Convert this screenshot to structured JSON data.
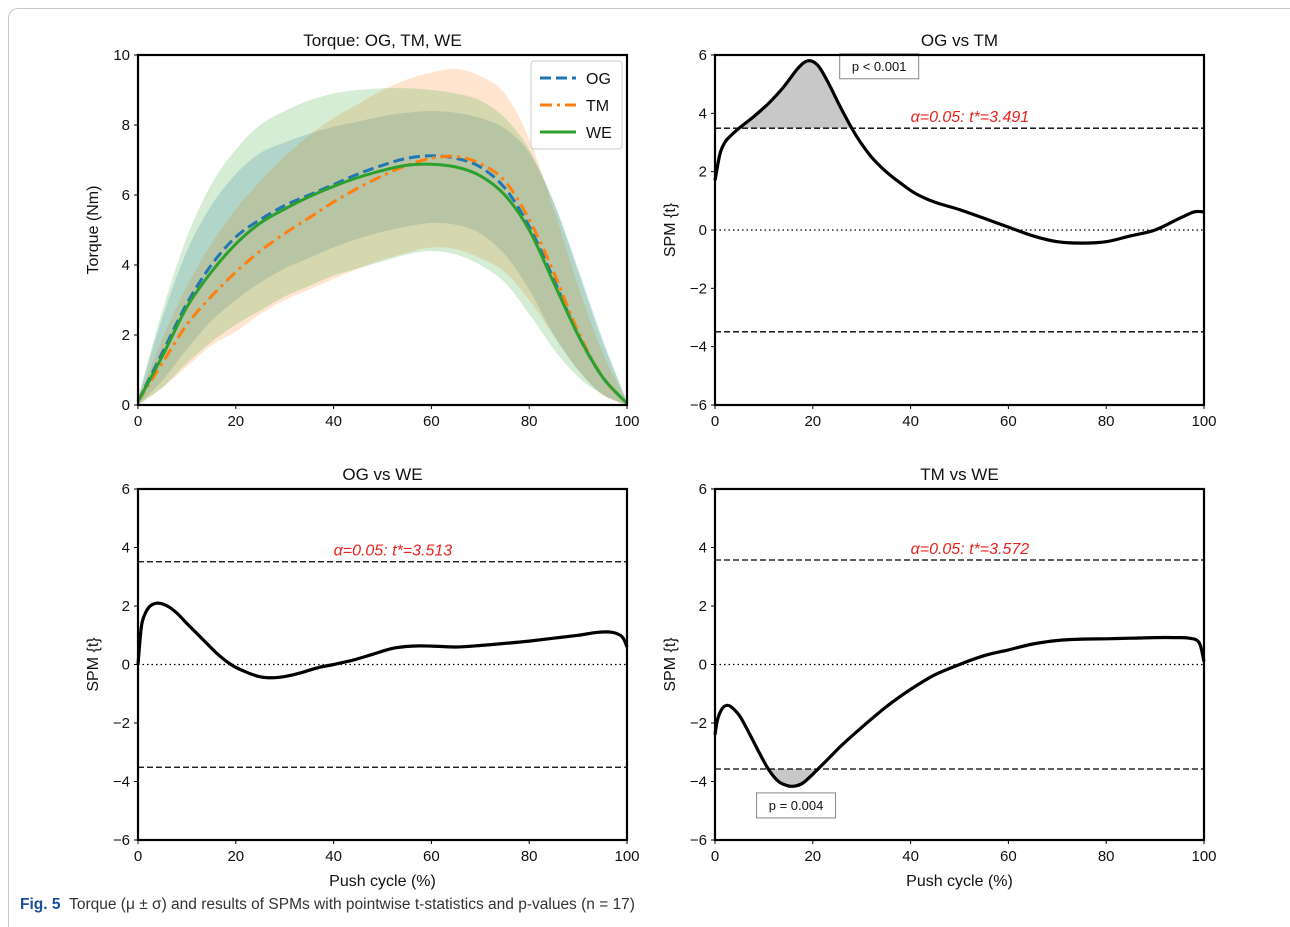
{
  "caption": {
    "label": "Fig. 5",
    "text": "Torque (μ ± σ) and results of SPMs with pointwise t-statistics and p-values (n = 17)"
  },
  "chart_data": [
    {
      "type": "line",
      "title": "Torque: OG, TM, WE",
      "xlabel": "",
      "ylabel": "Torque (Nm)",
      "xlim": [
        0,
        100
      ],
      "ylim": [
        0,
        10
      ],
      "xticks": [
        0,
        20,
        40,
        60,
        80,
        100
      ],
      "yticks": [
        0,
        2,
        4,
        6,
        8,
        10
      ],
      "legend_position": "top-right",
      "series": [
        {
          "name": "OG",
          "color": "#1f77b4",
          "style": "dashed",
          "x": [
            0,
            5,
            10,
            15,
            20,
            25,
            30,
            35,
            40,
            45,
            50,
            55,
            60,
            65,
            70,
            75,
            80,
            85,
            90,
            95,
            100
          ],
          "mean": [
            0.1,
            1.5,
            2.9,
            4.0,
            4.8,
            5.3,
            5.7,
            6.0,
            6.3,
            6.6,
            6.85,
            7.05,
            7.12,
            7.05,
            6.8,
            6.2,
            5.1,
            3.6,
            2.0,
            0.8,
            0.05
          ],
          "upper": [
            0.2,
            2.5,
            4.4,
            5.7,
            6.6,
            7.2,
            7.5,
            7.75,
            7.95,
            8.1,
            8.25,
            8.35,
            8.4,
            8.35,
            8.2,
            7.9,
            7.2,
            5.8,
            3.9,
            1.9,
            0.1
          ],
          "lower": [
            0.0,
            0.7,
            1.6,
            2.4,
            3.0,
            3.5,
            3.9,
            4.2,
            4.5,
            4.75,
            4.95,
            5.1,
            5.2,
            5.15,
            4.9,
            4.3,
            3.3,
            2.0,
            1.0,
            0.3,
            0.0
          ]
        },
        {
          "name": "TM",
          "color": "#ff7f0e",
          "style": "dashdot",
          "x": [
            0,
            5,
            10,
            15,
            20,
            25,
            30,
            35,
            40,
            45,
            50,
            55,
            60,
            65,
            70,
            75,
            80,
            85,
            90,
            95,
            100
          ],
          "mean": [
            0.1,
            1.2,
            2.3,
            3.1,
            3.8,
            4.4,
            4.9,
            5.35,
            5.8,
            6.2,
            6.55,
            6.85,
            7.05,
            7.1,
            6.9,
            6.4,
            5.3,
            3.8,
            2.1,
            0.8,
            0.05
          ],
          "upper": [
            0.2,
            1.9,
            3.4,
            4.6,
            5.6,
            6.4,
            7.1,
            7.7,
            8.2,
            8.6,
            9.0,
            9.3,
            9.5,
            9.6,
            9.4,
            8.9,
            7.6,
            5.6,
            3.4,
            1.5,
            0.1
          ],
          "lower": [
            0.0,
            0.5,
            1.1,
            1.7,
            2.1,
            2.6,
            3.0,
            3.3,
            3.6,
            3.9,
            4.15,
            4.35,
            4.5,
            4.45,
            4.2,
            3.8,
            3.0,
            2.0,
            1.0,
            0.3,
            0.0
          ]
        },
        {
          "name": "WE",
          "color": "#2ca02c",
          "style": "solid",
          "x": [
            0,
            5,
            10,
            15,
            20,
            25,
            30,
            35,
            40,
            45,
            50,
            55,
            60,
            65,
            70,
            75,
            80,
            85,
            90,
            95,
            100
          ],
          "mean": [
            0.1,
            1.4,
            2.8,
            3.8,
            4.6,
            5.2,
            5.6,
            5.95,
            6.25,
            6.5,
            6.7,
            6.85,
            6.88,
            6.8,
            6.55,
            6.0,
            5.0,
            3.5,
            2.0,
            0.8,
            0.05
          ],
          "upper": [
            0.2,
            2.7,
            4.8,
            6.3,
            7.3,
            8.0,
            8.4,
            8.7,
            8.9,
            9.0,
            9.05,
            9.05,
            9.0,
            8.9,
            8.7,
            8.2,
            7.3,
            5.8,
            3.8,
            1.8,
            0.1
          ],
          "lower": [
            0.0,
            0.5,
            1.2,
            1.8,
            2.3,
            2.7,
            3.1,
            3.4,
            3.7,
            3.9,
            4.1,
            4.3,
            4.4,
            4.3,
            4.0,
            3.5,
            2.6,
            1.6,
            0.8,
            0.3,
            0.0
          ]
        }
      ]
    },
    {
      "type": "line",
      "title": "OG vs TM",
      "xlabel": "",
      "ylabel": "SPM {t}",
      "xlim": [
        0,
        100
      ],
      "ylim": [
        -6,
        6
      ],
      "xticks": [
        0,
        20,
        40,
        60,
        80,
        100
      ],
      "yticks": [
        -6,
        -4,
        -2,
        0,
        2,
        4,
        6
      ],
      "threshold": 3.491,
      "threshold_label": "α=0.05:  t*=3.491",
      "p_label": "p < 0.001",
      "x": [
        0,
        1,
        2,
        3,
        5,
        8,
        11,
        14,
        17,
        19,
        21,
        23,
        26,
        29,
        32,
        35,
        38,
        41,
        45,
        50,
        55,
        60,
        65,
        70,
        75,
        80,
        85,
        90,
        95,
        98,
        100
      ],
      "t": [
        1.7,
        2.6,
        3.0,
        3.2,
        3.5,
        3.9,
        4.35,
        4.9,
        5.55,
        5.8,
        5.65,
        5.1,
        4.1,
        3.2,
        2.5,
        2.0,
        1.6,
        1.25,
        0.95,
        0.7,
        0.4,
        0.1,
        -0.2,
        -0.4,
        -0.45,
        -0.4,
        -0.2,
        0.0,
        0.4,
        0.62,
        0.62
      ]
    },
    {
      "type": "line",
      "title": "OG vs WE",
      "xlabel": "Push cycle (%)",
      "ylabel": "SPM {t}",
      "xlim": [
        0,
        100
      ],
      "ylim": [
        -6,
        6
      ],
      "xticks": [
        0,
        20,
        40,
        60,
        80,
        100
      ],
      "yticks": [
        -6,
        -4,
        -2,
        0,
        2,
        4,
        6
      ],
      "threshold": 3.513,
      "threshold_label": "α=0.05:  t*=3.513",
      "x": [
        0,
        0.7,
        1.5,
        2.5,
        4,
        6,
        8,
        10,
        13,
        16,
        19,
        22,
        25,
        28,
        31,
        34,
        37,
        40,
        44,
        48,
        52,
        56,
        60,
        65,
        70,
        75,
        80,
        85,
        90,
        94,
        97,
        99,
        100
      ],
      "t": [
        0.0,
        1.3,
        1.75,
        2.0,
        2.1,
        2.0,
        1.75,
        1.4,
        0.9,
        0.4,
        0.0,
        -0.25,
        -0.42,
        -0.45,
        -0.38,
        -0.25,
        -0.1,
        0.0,
        0.15,
        0.35,
        0.55,
        0.63,
        0.63,
        0.6,
        0.65,
        0.72,
        0.8,
        0.9,
        1.0,
        1.1,
        1.1,
        0.95,
        0.6
      ]
    },
    {
      "type": "line",
      "title": "TM vs WE",
      "xlabel": "Push cycle (%)",
      "ylabel": "SPM {t}",
      "xlim": [
        0,
        100
      ],
      "ylim": [
        -6,
        6
      ],
      "xticks": [
        0,
        20,
        40,
        60,
        80,
        100
      ],
      "yticks": [
        -6,
        -4,
        -2,
        0,
        2,
        4,
        6
      ],
      "threshold": 3.572,
      "threshold_label": "α=0.05:  t*=3.572",
      "p_label": "p = 0.004",
      "x": [
        0,
        0.5,
        1.3,
        2.3,
        3.3,
        5,
        7,
        9,
        11,
        13,
        15,
        16.5,
        18,
        20,
        23,
        26,
        30,
        35,
        40,
        45,
        50,
        55,
        60,
        65,
        70,
        75,
        80,
        85,
        90,
        94,
        97,
        99,
        100
      ],
      "t": [
        -2.4,
        -1.9,
        -1.55,
        -1.4,
        -1.45,
        -1.75,
        -2.35,
        -3.0,
        -3.6,
        -4.0,
        -4.15,
        -4.15,
        -4.05,
        -3.75,
        -3.25,
        -2.75,
        -2.15,
        -1.45,
        -0.85,
        -0.35,
        0.0,
        0.3,
        0.5,
        0.7,
        0.82,
        0.87,
        0.88,
        0.9,
        0.92,
        0.92,
        0.9,
        0.75,
        0.1
      ]
    }
  ]
}
